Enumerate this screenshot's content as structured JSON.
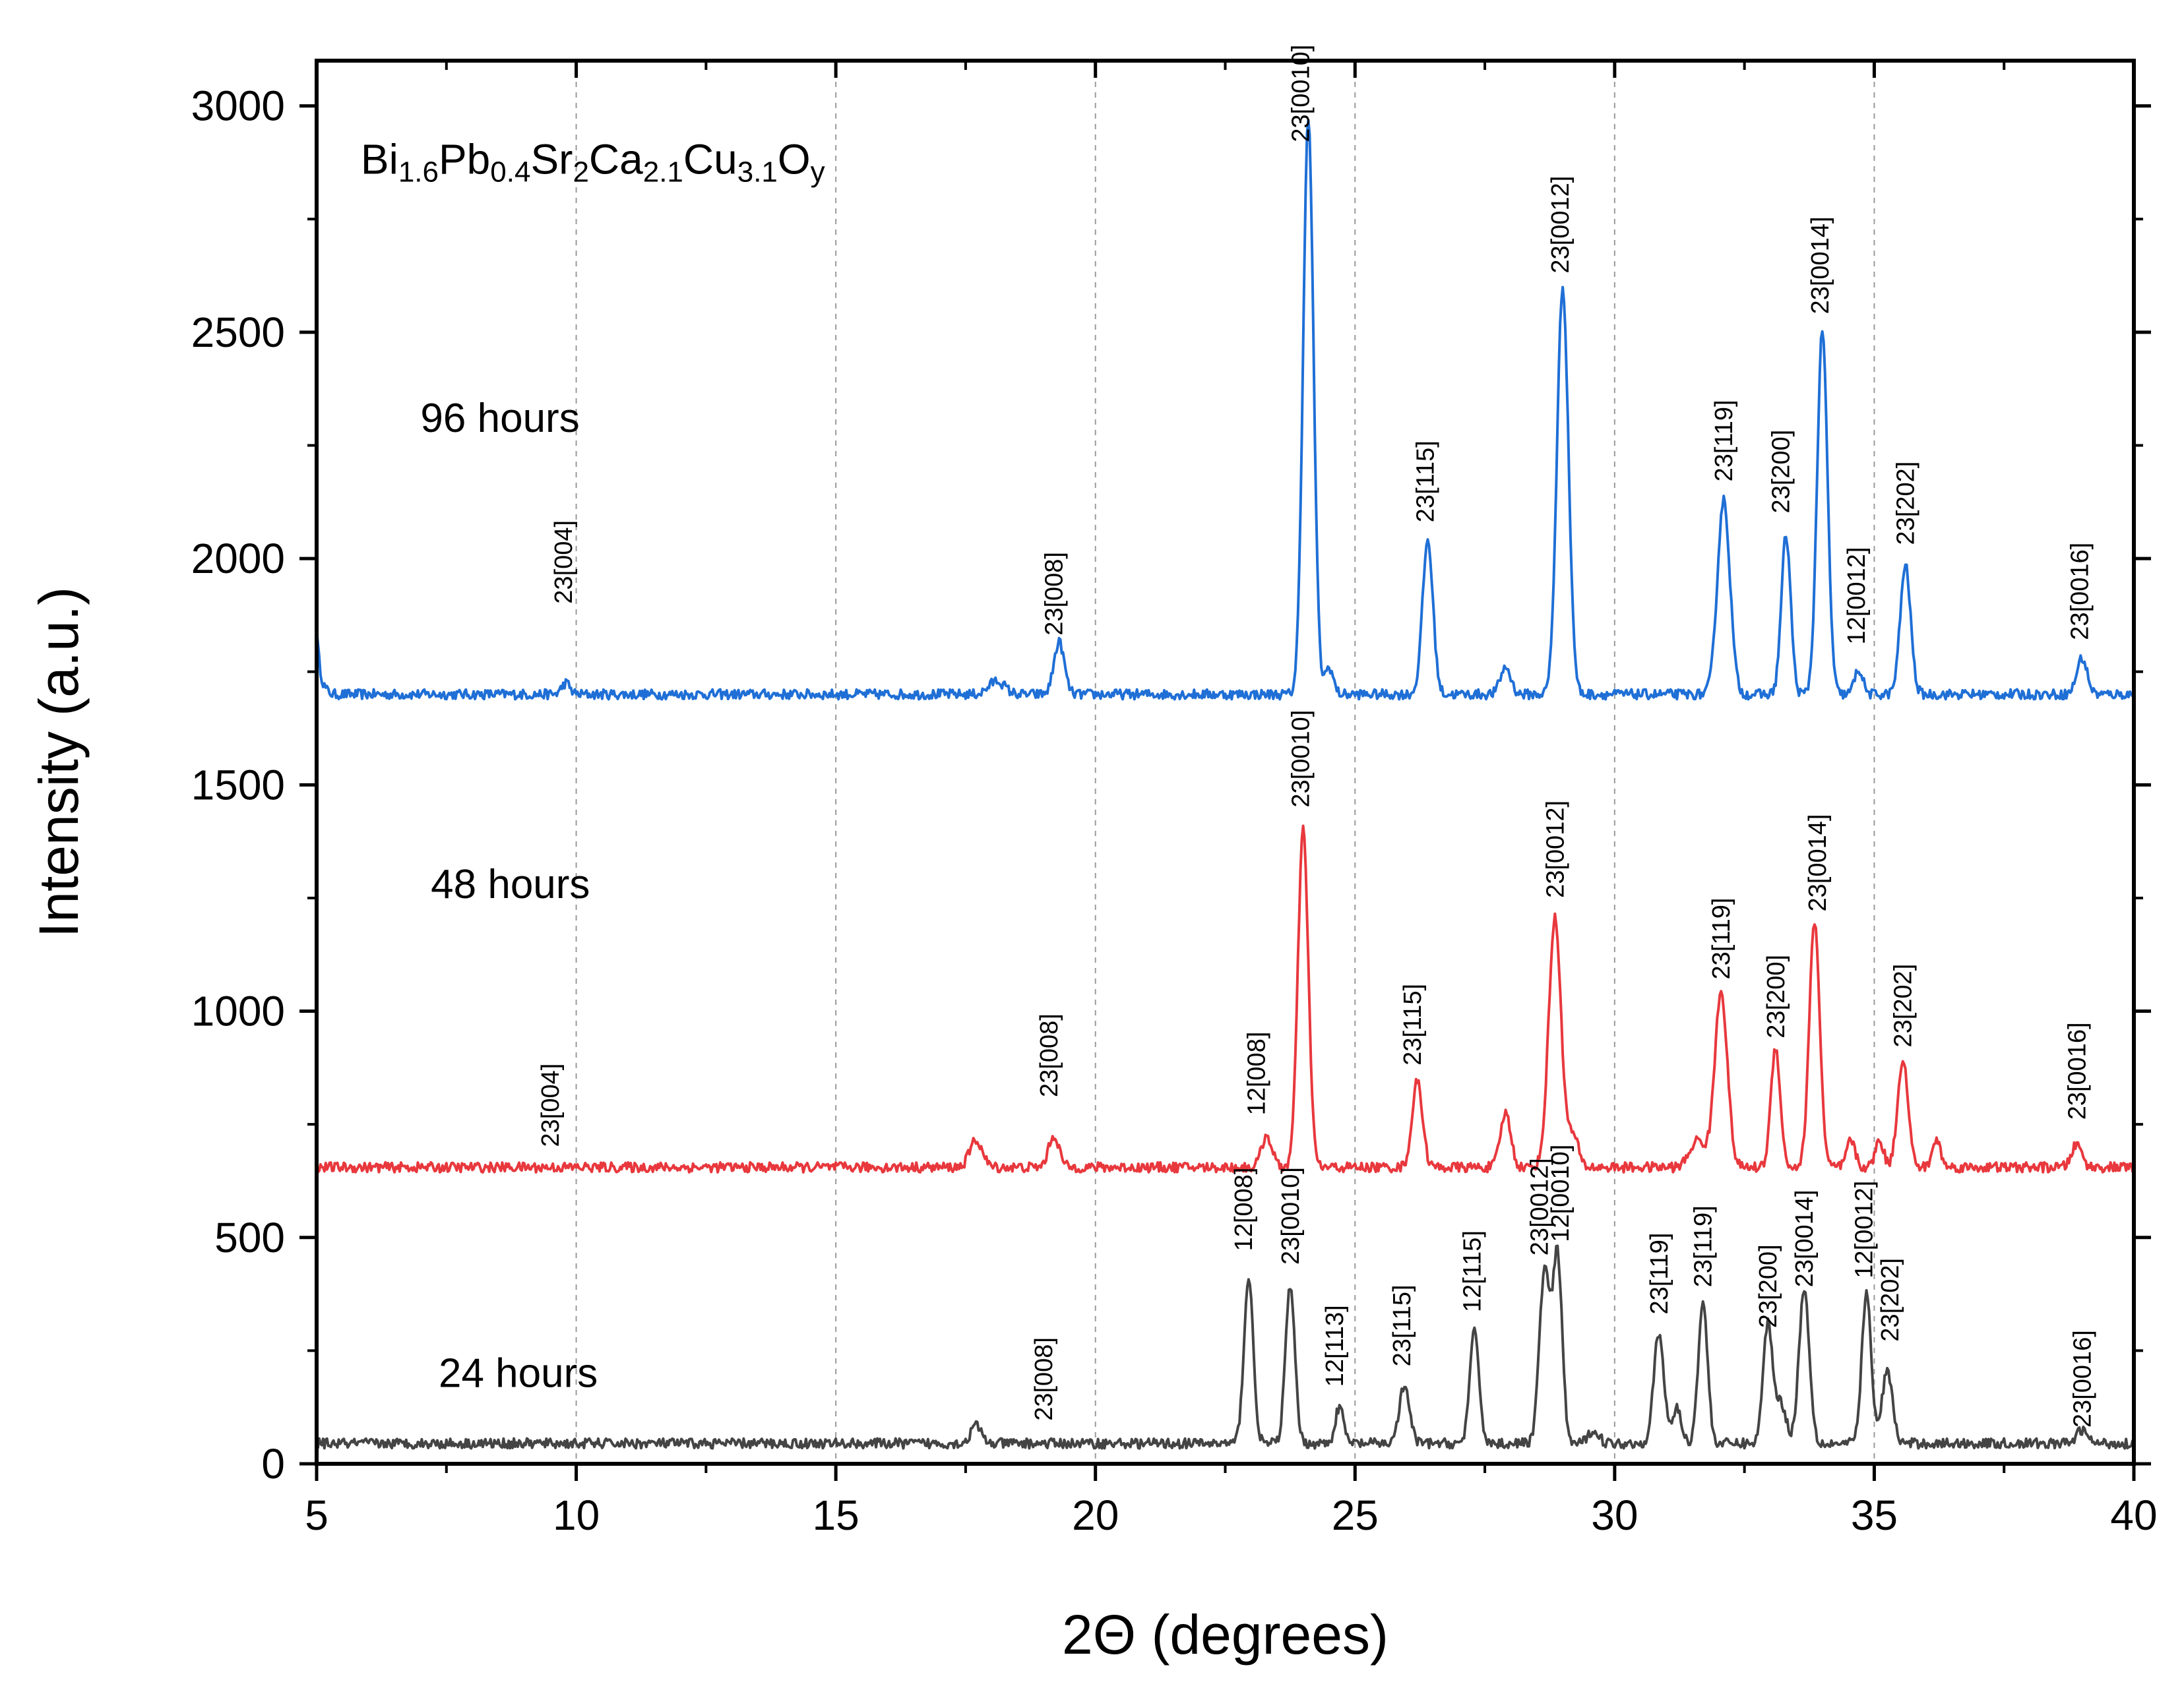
{
  "chart_data": {
    "type": "line",
    "title": "",
    "compound": {
      "parts": [
        {
          "t": "Bi",
          "sub": false
        },
        {
          "t": "1.6",
          "sub": true
        },
        {
          "t": "Pb",
          "sub": false
        },
        {
          "t": "0.4",
          "sub": true
        },
        {
          "t": "Sr",
          "sub": false
        },
        {
          "t": "2",
          "sub": true
        },
        {
          "t": "Ca",
          "sub": false
        },
        {
          "t": "2.1",
          "sub": true
        },
        {
          "t": "Cu",
          "sub": false
        },
        {
          "t": "3.1",
          "sub": true
        },
        {
          "t": "O",
          "sub": false
        },
        {
          "t": "y",
          "sub": true
        }
      ]
    },
    "xlabel": "2Θ (degrees)",
    "ylabel": "Intensity (a.u.)",
    "xlim": [
      5,
      40
    ],
    "ylim": [
      0,
      3100
    ],
    "xticks": [
      5,
      10,
      15,
      20,
      25,
      30,
      35,
      40
    ],
    "yticks": [
      0,
      500,
      1000,
      1500,
      2000,
      2500,
      3000
    ],
    "vertical_gridlines_at": [
      10,
      15,
      20,
      25,
      30,
      35
    ],
    "series": [
      {
        "name": "96 hours",
        "color": "#1f6fd6",
        "baseline": 1700,
        "peaks": [
          [
            9.8,
            25,
            0.08
          ],
          [
            18.1,
            30,
            0.15
          ],
          [
            19.3,
            115,
            0.1
          ],
          [
            24.1,
            1270,
            0.1
          ],
          [
            24.5,
            60,
            0.08
          ],
          [
            26.4,
            340,
            0.1
          ],
          [
            27.9,
            60,
            0.1
          ],
          [
            29.0,
            900,
            0.11
          ],
          [
            32.1,
            430,
            0.12
          ],
          [
            33.3,
            350,
            0.09
          ],
          [
            34.0,
            800,
            0.1
          ],
          [
            34.7,
            55,
            0.08
          ],
          [
            35.6,
            285,
            0.1
          ],
          [
            39.0,
            80,
            0.1
          ]
        ],
        "label": {
          "text": "96 hours",
          "x": 7.0,
          "y": 2280
        },
        "peak_labels": [
          {
            "text": "23[004]",
            "x": 9.75,
            "y": 1900
          },
          {
            "text": "23[008]",
            "x": 19.2,
            "y": 1830
          },
          {
            "text": "23[0010]",
            "x": 23.95,
            "y": 2920
          },
          {
            "text": "23[115]",
            "x": 26.35,
            "y": 2080
          },
          {
            "text": "23[0012]",
            "x": 28.95,
            "y": 2630
          },
          {
            "text": "23[119]",
            "x": 32.1,
            "y": 2170
          },
          {
            "text": "23[200]",
            "x": 33.2,
            "y": 2100
          },
          {
            "text": "23[0014]",
            "x": 33.95,
            "y": 2540
          },
          {
            "text": "12[0012]",
            "x": 34.65,
            "y": 1810
          },
          {
            "text": "23[202]",
            "x": 35.6,
            "y": 2030
          },
          {
            "text": "23[0016]",
            "x": 38.95,
            "y": 1820
          }
        ]
      },
      {
        "name": "48 hours",
        "color": "#e8383d",
        "baseline": 655,
        "peaks": [
          [
            17.7,
            60,
            0.12
          ],
          [
            19.2,
            70,
            0.1
          ],
          [
            23.3,
            70,
            0.1
          ],
          [
            24.0,
            745,
            0.1
          ],
          [
            26.2,
            190,
            0.1
          ],
          [
            27.9,
            120,
            0.1
          ],
          [
            28.85,
            550,
            0.12
          ],
          [
            29.2,
            70,
            0.1
          ],
          [
            31.6,
            60,
            0.15
          ],
          [
            32.05,
            390,
            0.12
          ],
          [
            33.1,
            265,
            0.09
          ],
          [
            33.85,
            545,
            0.1
          ],
          [
            34.55,
            60,
            0.08
          ],
          [
            35.1,
            60,
            0.08
          ],
          [
            35.55,
            240,
            0.1
          ],
          [
            36.2,
            60,
            0.08
          ],
          [
            38.9,
            50,
            0.1
          ]
        ],
        "label": {
          "text": "48 hours",
          "x": 7.2,
          "y": 1250
        },
        "peak_labels": [
          {
            "text": "23[004]",
            "x": 9.5,
            "y": 700
          },
          {
            "text": "23[008]",
            "x": 19.1,
            "y": 810
          },
          {
            "text": "12[008]",
            "x": 23.1,
            "y": 770
          },
          {
            "text": "23[0010]",
            "x": 23.95,
            "y": 1450
          },
          {
            "text": "23[115]",
            "x": 26.1,
            "y": 880
          },
          {
            "text": "23[0012]",
            "x": 28.85,
            "y": 1250
          },
          {
            "text": "23[119]",
            "x": 32.05,
            "y": 1070
          },
          {
            "text": "23[200]",
            "x": 33.1,
            "y": 940
          },
          {
            "text": "23[0014]",
            "x": 33.9,
            "y": 1220
          },
          {
            "text": "23[202]",
            "x": 35.55,
            "y": 920
          },
          {
            "text": "23[0016]",
            "x": 38.9,
            "y": 760
          }
        ]
      },
      {
        "name": "24 hours",
        "color": "#444444",
        "baseline": 45,
        "peaks": [
          [
            17.7,
            40,
            0.1
          ],
          [
            22.95,
            365,
            0.09
          ],
          [
            23.75,
            345,
            0.09
          ],
          [
            24.7,
            80,
            0.08
          ],
          [
            25.95,
            125,
            0.1
          ],
          [
            27.3,
            245,
            0.09
          ],
          [
            28.65,
            380,
            0.1
          ],
          [
            28.9,
            410,
            0.09
          ],
          [
            29.6,
            30,
            0.1
          ],
          [
            30.85,
            240,
            0.1
          ],
          [
            31.2,
            80,
            0.08
          ],
          [
            31.7,
            310,
            0.09
          ],
          [
            32.95,
            265,
            0.09
          ],
          [
            33.2,
            90,
            0.1
          ],
          [
            33.65,
            340,
            0.1
          ],
          [
            34.85,
            330,
            0.09
          ],
          [
            35.25,
            160,
            0.1
          ],
          [
            39.0,
            30,
            0.1
          ]
        ],
        "label": {
          "text": "24 hours",
          "x": 7.35,
          "y": 170
        },
        "peak_labels": [
          {
            "text": "23[008]",
            "x": 19.0,
            "y": 95
          },
          {
            "text": "12[008]",
            "x": 22.85,
            "y": 470
          },
          {
            "text": "23[0010]",
            "x": 23.75,
            "y": 440
          },
          {
            "text": "12[113]",
            "x": 24.6,
            "y": 170
          },
          {
            "text": "23[115]",
            "x": 25.9,
            "y": 215
          },
          {
            "text": "12[115]",
            "x": 27.25,
            "y": 335
          },
          {
            "text": "23[0012]",
            "x": 28.55,
            "y": 460
          },
          {
            "text": "12[0010]",
            "x": 28.95,
            "y": 490
          },
          {
            "text": "23[119]",
            "x": 30.85,
            "y": 330
          },
          {
            "text": "23[119]",
            "x": 31.7,
            "y": 390
          },
          {
            "text": "23[200]",
            "x": 32.95,
            "y": 300
          },
          {
            "text": "23[0014]",
            "x": 33.65,
            "y": 390
          },
          {
            "text": "12[0012]",
            "x": 34.8,
            "y": 410
          },
          {
            "text": "23[202]",
            "x": 35.3,
            "y": 270
          },
          {
            "text": "23[0016]",
            "x": 39.0,
            "y": 80
          }
        ]
      }
    ]
  }
}
